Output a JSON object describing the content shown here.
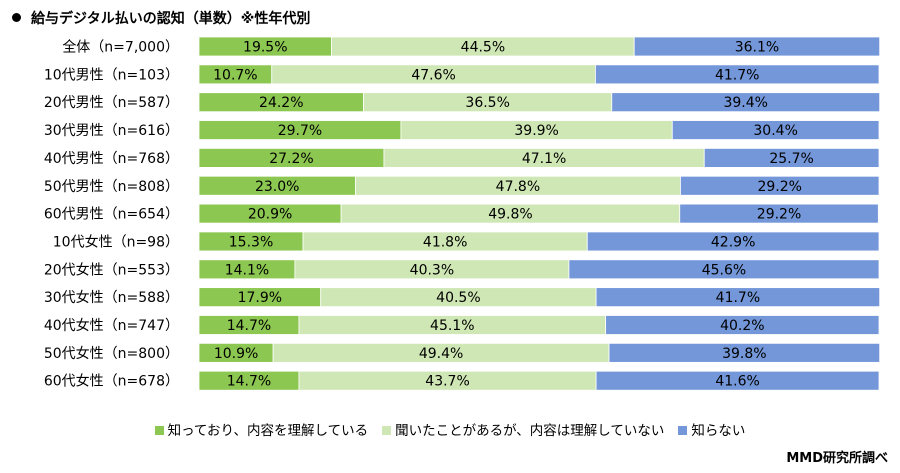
{
  "chart_data": {
    "type": "bar",
    "orientation": "horizontal",
    "stacked": true,
    "percent_stacked": true,
    "title": "給与デジタル払いの認知（単数）※性年代別",
    "categories": [
      "全体（n=7,000）",
      "10代男性（n=103）",
      "20代男性（n=587）",
      "30代男性（n=616）",
      "40代男性（n=768）",
      "50代男性（n=808）",
      "60代男性（n=654）",
      "10代女性（n=98）",
      "20代女性（n=553）",
      "30代女性（n=588）",
      "40代女性（n=747）",
      "50代女性（n=800）",
      "60代女性（n=678）"
    ],
    "series": [
      {
        "name": "知っており、内容を理解している",
        "color": "#8cc751",
        "values": [
          19.5,
          10.7,
          24.2,
          29.7,
          27.2,
          23.0,
          20.9,
          15.3,
          14.1,
          17.9,
          14.7,
          10.9,
          14.7
        ],
        "labels": [
          "19.5%",
          "10.7%",
          "24.2%",
          "29.7%",
          "27.2%",
          "23.0%",
          "20.9%",
          "15.3%",
          "14.1%",
          "17.9%",
          "14.7%",
          "10.9%",
          "14.7%"
        ]
      },
      {
        "name": "聞いたことがあるが、内容は理解していない",
        "color": "#cfe7b4",
        "values": [
          44.5,
          47.6,
          36.5,
          39.9,
          47.1,
          47.8,
          49.8,
          41.8,
          40.3,
          40.5,
          45.1,
          49.4,
          43.7
        ],
        "labels": [
          "44.5%",
          "47.6%",
          "36.5%",
          "39.9%",
          "47.1%",
          "47.8%",
          "49.8%",
          "41.8%",
          "40.3%",
          "40.5%",
          "45.1%",
          "49.4%",
          "43.7%"
        ]
      },
      {
        "name": "知らない",
        "color": "#7397d8",
        "values": [
          36.1,
          41.7,
          39.4,
          30.4,
          25.7,
          29.2,
          29.2,
          42.9,
          45.6,
          41.7,
          40.2,
          39.8,
          41.6
        ],
        "labels": [
          "36.1%",
          "41.7%",
          "39.4%",
          "30.4%",
          "25.7%",
          "29.2%",
          "29.2%",
          "42.9%",
          "45.6%",
          "41.7%",
          "40.2%",
          "39.8%",
          "41.6%"
        ]
      }
    ],
    "xlim": [
      0,
      100
    ],
    "grid": false,
    "legend_position": "bottom"
  },
  "source": "MMD研究所調べ"
}
